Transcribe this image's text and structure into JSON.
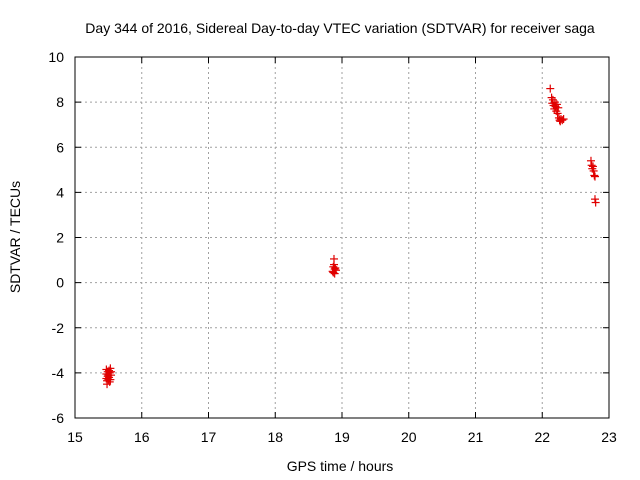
{
  "chart_data": {
    "type": "scatter",
    "title": "Day 344 of 2016, Sidereal Day-to-day VTEC variation (SDTVAR) for receiver saga",
    "xlabel": "GPS time / hours",
    "ylabel": "SDTVAR / TECUs",
    "xlim": [
      15,
      23
    ],
    "ylim": [
      -6,
      10
    ],
    "xticks": [
      "15",
      "16",
      "17",
      "18",
      "19",
      "20",
      "21",
      "22",
      "23"
    ],
    "yticks": [
      "-6",
      "-4",
      "-2",
      "0",
      "2",
      "4",
      "6",
      "8",
      "10"
    ],
    "grid": true,
    "marker": "+",
    "color": "#e00000",
    "series": [
      {
        "name": "SDTVAR",
        "points": [
          [
            15.47,
            -3.85
          ],
          [
            15.47,
            -4.05
          ],
          [
            15.47,
            -4.25
          ],
          [
            15.48,
            -4.5
          ],
          [
            15.48,
            -4.35
          ],
          [
            15.49,
            -4.15
          ],
          [
            15.49,
            -3.95
          ],
          [
            15.5,
            -4.3
          ],
          [
            15.5,
            -4.1
          ],
          [
            15.51,
            -3.9
          ],
          [
            15.51,
            -4.2
          ],
          [
            15.52,
            -4.4
          ],
          [
            15.52,
            -4.0
          ],
          [
            15.53,
            -3.8
          ],
          [
            15.53,
            -4.3
          ],
          [
            15.54,
            -4.1
          ],
          [
            15.54,
            -3.95
          ],
          [
            18.86,
            0.5
          ],
          [
            18.87,
            0.7
          ],
          [
            18.87,
            0.45
          ],
          [
            18.88,
            0.8
          ],
          [
            18.88,
            1.05
          ],
          [
            18.89,
            0.6
          ],
          [
            18.89,
            0.4
          ],
          [
            18.9,
            0.65
          ],
          [
            18.91,
            0.55
          ],
          [
            22.12,
            8.6
          ],
          [
            22.14,
            8.2
          ],
          [
            22.15,
            7.95
          ],
          [
            22.16,
            8.1
          ],
          [
            22.17,
            7.85
          ],
          [
            22.18,
            7.7
          ],
          [
            22.19,
            8.0
          ],
          [
            22.2,
            7.8
          ],
          [
            22.21,
            7.6
          ],
          [
            22.22,
            7.9
          ],
          [
            22.23,
            7.5
          ],
          [
            22.24,
            7.75
          ],
          [
            22.25,
            7.3
          ],
          [
            22.26,
            7.2
          ],
          [
            22.27,
            7.15
          ],
          [
            22.28,
            7.25
          ],
          [
            22.3,
            7.2
          ],
          [
            22.32,
            7.25
          ],
          [
            22.73,
            5.4
          ],
          [
            22.74,
            5.2
          ],
          [
            22.75,
            5.05
          ],
          [
            22.76,
            5.15
          ],
          [
            22.77,
            4.95
          ],
          [
            22.78,
            4.75
          ],
          [
            22.79,
            4.7
          ],
          [
            22.79,
            3.7
          ],
          [
            22.8,
            3.55
          ]
        ]
      }
    ]
  }
}
